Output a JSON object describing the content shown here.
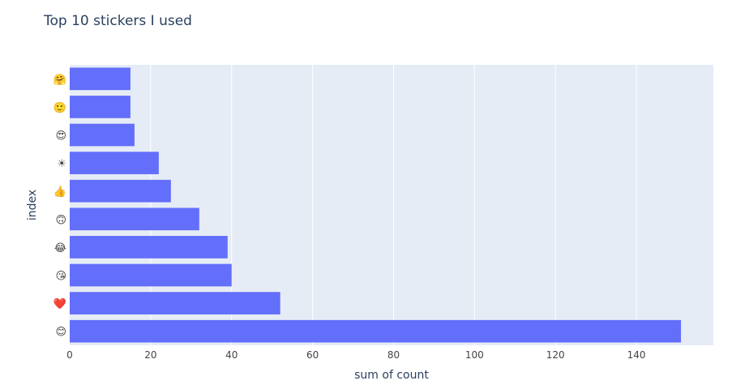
{
  "chart_data": {
    "type": "bar",
    "orientation": "horizontal",
    "title": "Top 10 stickers I used",
    "xlabel": "sum of count",
    "ylabel": "index",
    "categories": [
      "😊",
      "❤️",
      "😘",
      "😂",
      "🙃",
      "👍",
      "☀",
      "😍",
      "🙂",
      "🤗"
    ],
    "values": [
      151,
      52,
      40,
      39,
      32,
      25,
      22,
      16,
      15,
      15
    ],
    "category_icons": [
      "smiling-face-icon",
      "red-heart-icon",
      "face-blowing-kiss-icon",
      "face-with-tears-of-joy-icon",
      "upside-down-face-icon",
      "thumbs-up-icon",
      "sun-icon",
      "heart-eyes-face-icon",
      "slightly-smiling-face-icon",
      "hugging-face-icon"
    ],
    "xlim": [
      0,
      159
    ],
    "xticks": [
      0,
      20,
      40,
      60,
      80,
      100,
      120,
      140
    ],
    "grid": true,
    "legend": "none",
    "colors": {
      "bar": "#636efa",
      "plot_bg": "#e5ecf6",
      "grid": "#ffffff",
      "text": "#2a3f5f",
      "tick_text": "#444444"
    }
  }
}
